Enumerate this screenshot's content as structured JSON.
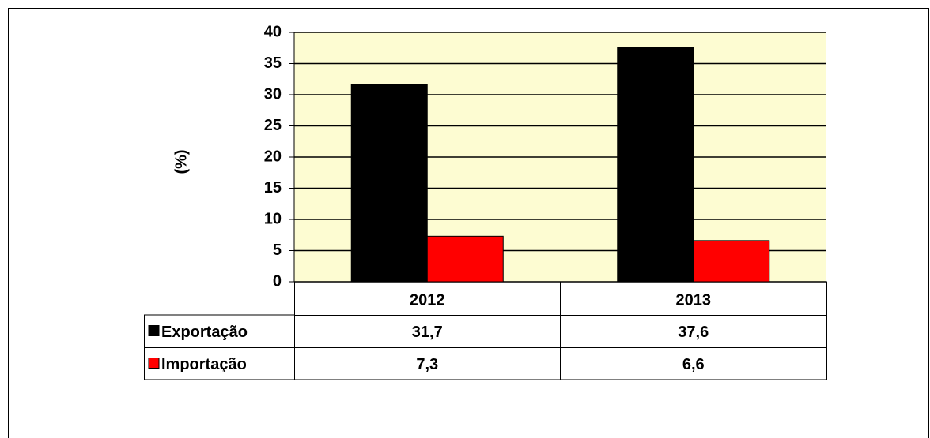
{
  "chart_data": {
    "type": "bar",
    "ylabel": "(%)",
    "categories": [
      "2012",
      "2013"
    ],
    "series": [
      {
        "name": "Exportação",
        "color": "#000000",
        "values": [
          31.7,
          37.6
        ],
        "value_labels": [
          "31,7",
          "37,6"
        ]
      },
      {
        "name": "Importação",
        "color": "#ff0000",
        "values": [
          7.3,
          6.6
        ],
        "value_labels": [
          "7,3",
          "6,6"
        ]
      }
    ],
    "ylim": [
      0,
      40
    ],
    "yticks": [
      0,
      5,
      10,
      15,
      20,
      25,
      30,
      35,
      40
    ],
    "grid": true,
    "data_table": true
  }
}
